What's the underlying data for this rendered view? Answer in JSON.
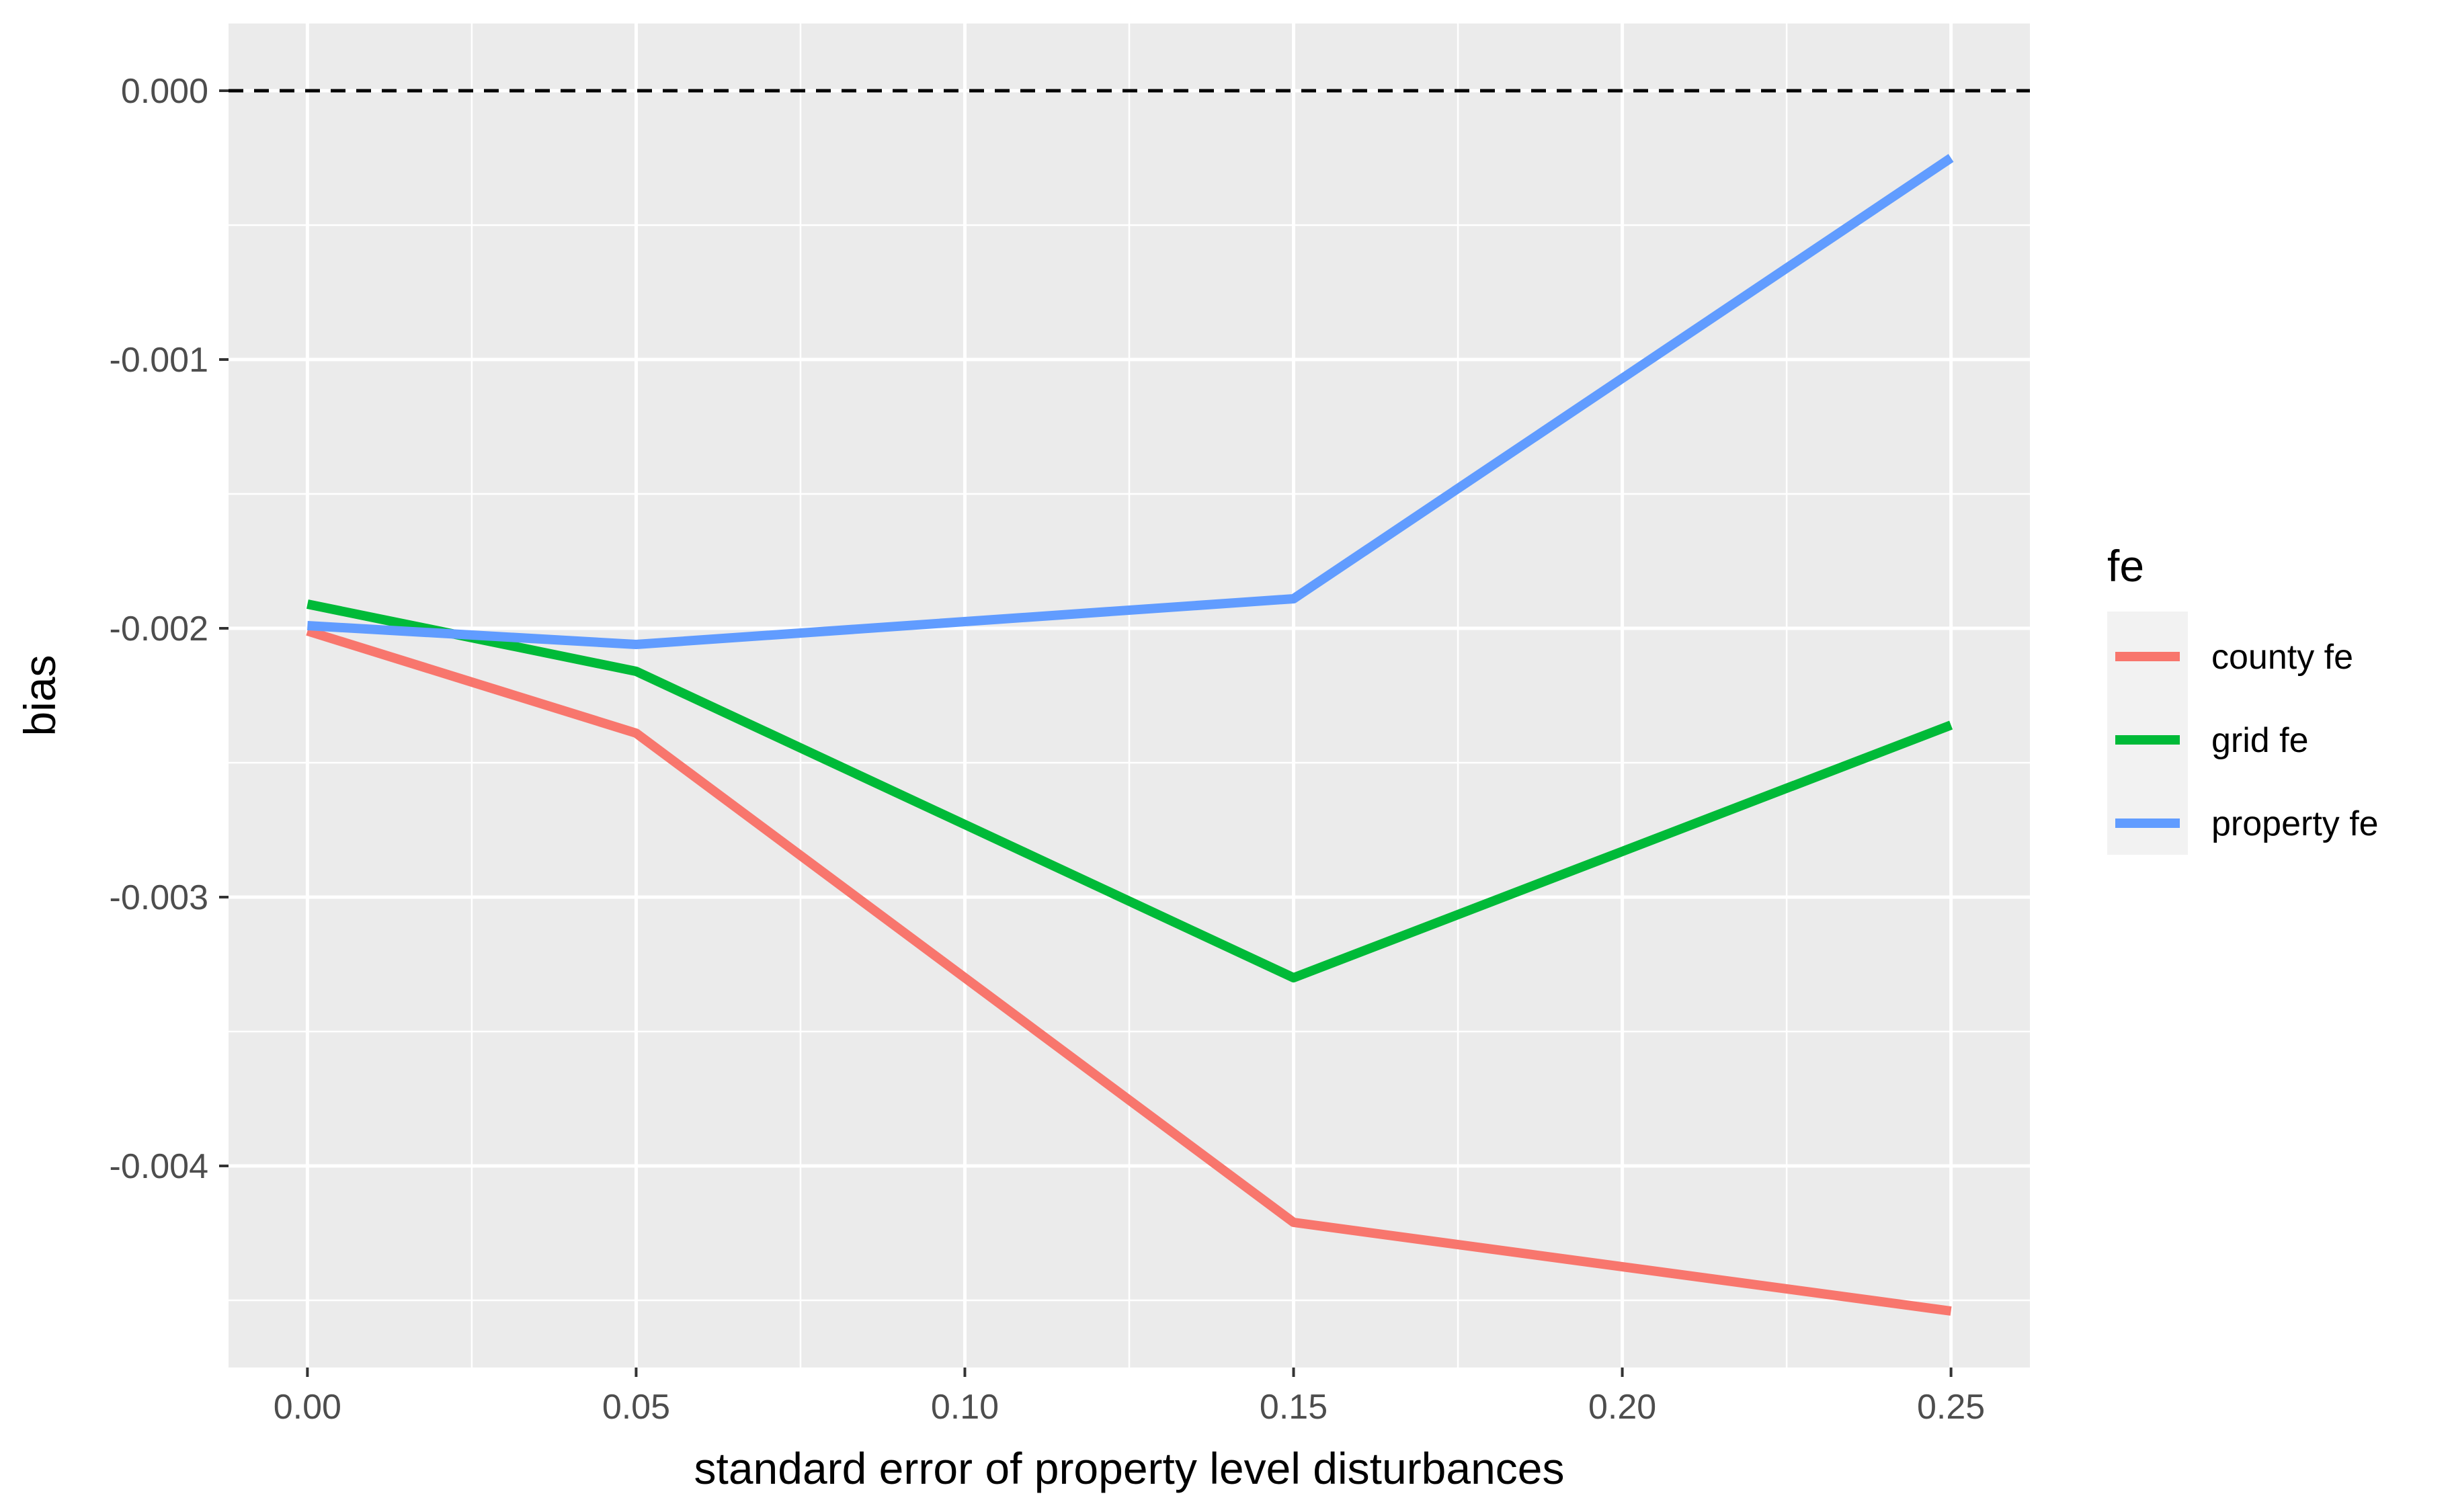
{
  "chart_data": {
    "type": "line",
    "title": "",
    "xlabel": "standard error of property level disturbances",
    "ylabel": "bias",
    "xlim": [
      -0.012,
      0.262
    ],
    "ylim": [
      -0.00475,
      0.00025
    ],
    "x_ticks": [
      0.0,
      0.05,
      0.1,
      0.15,
      0.2,
      0.25
    ],
    "x_tick_labels": [
      "0.00",
      "0.05",
      "0.10",
      "0.15",
      "0.20",
      "0.25"
    ],
    "y_ticks": [
      0.0,
      -0.001,
      -0.002,
      -0.003,
      -0.004
    ],
    "y_tick_labels": [
      "0.000",
      "-0.001",
      "-0.002",
      "-0.003",
      "-0.004"
    ],
    "reference_line": {
      "y": 0.0,
      "style": "dashed",
      "color": "#000000"
    },
    "grid": true,
    "legend": {
      "title": "fe",
      "position": "right"
    },
    "x": [
      0.0,
      0.05,
      0.15,
      0.25
    ],
    "series": [
      {
        "name": "county fe",
        "color": "#F8766D",
        "values": [
          -0.00201,
          -0.00239,
          -0.00421,
          -0.00454
        ]
      },
      {
        "name": "grid fe",
        "color": "#00BA38",
        "values": [
          -0.00191,
          -0.00216,
          -0.0033,
          -0.00236
        ]
      },
      {
        "name": "property fe",
        "color": "#619CFF",
        "values": [
          -0.00199,
          -0.00206,
          -0.00189,
          -0.00025
        ]
      }
    ]
  }
}
